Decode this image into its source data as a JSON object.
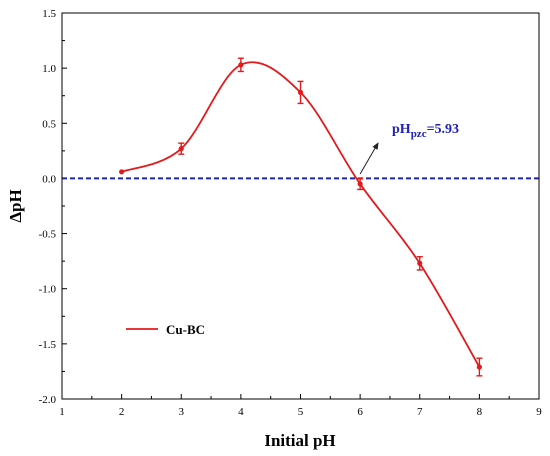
{
  "chart_data": {
    "type": "line",
    "title": "",
    "xlabel": "Initial pH",
    "ylabel": "ΔpH",
    "xlim": [
      1,
      9
    ],
    "ylim": [
      -2.0,
      1.5
    ],
    "x_ticks": [
      "1",
      "2",
      "3",
      "4",
      "5",
      "6",
      "7",
      "8",
      "9"
    ],
    "y_ticks": [
      "1.5",
      "1.0",
      "0.5",
      "0.0",
      "-0.5",
      "-1.0",
      "-1.5",
      "-2.0"
    ],
    "grid": false,
    "legend_position": "bottom-left",
    "series": [
      {
        "name": "Cu-BC",
        "color": "#e31a1c",
        "x": [
          2,
          3,
          4,
          5,
          6,
          7,
          8
        ],
        "y": [
          0.06,
          0.27,
          1.03,
          0.78,
          -0.05,
          -0.77,
          -1.71
        ],
        "error": [
          0.0,
          0.05,
          0.06,
          0.1,
          0.05,
          0.06,
          0.08
        ]
      }
    ],
    "reference_line": {
      "y": 0.0,
      "color": "#1e22b5",
      "style": "dashed"
    },
    "annotation": {
      "text": "pH",
      "subscript": "pzc",
      "suffix": "=5.93",
      "color": "#1e22b5",
      "arrow_from": [
        6.0,
        0.04
      ],
      "arrow_to": [
        6.3,
        0.32
      ]
    }
  }
}
